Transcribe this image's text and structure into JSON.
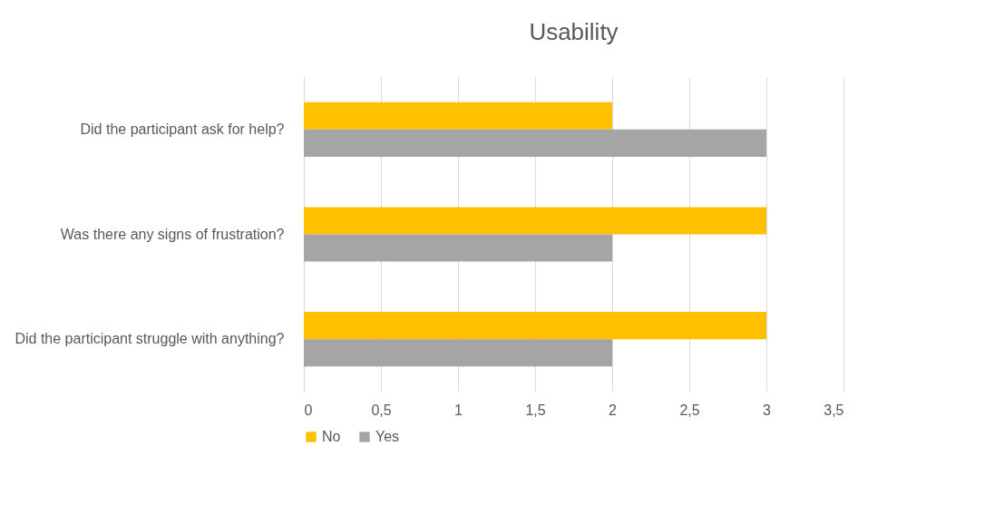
{
  "chart_data": {
    "type": "bar",
    "orientation": "horizontal",
    "title": "Usability",
    "categories": [
      "Did the participant ask for help?",
      "Was there any signs of frustration?",
      "Did the participant struggle with anything?"
    ],
    "series": [
      {
        "name": "No",
        "color": "#ffc000",
        "values": [
          2,
          3,
          3
        ]
      },
      {
        "name": "Yes",
        "color": "#a5a5a5",
        "values": [
          3,
          2,
          2
        ]
      }
    ],
    "xlim": [
      0,
      3.5
    ],
    "xticks": [
      0,
      {
        "value": 0.5,
        "label": "0,5"
      },
      1,
      {
        "value": 1.5,
        "label": "1,5"
      },
      2,
      {
        "value": 2.5,
        "label": "2,5"
      },
      3,
      {
        "value": 3.5,
        "label": "3,5"
      }
    ],
    "grid": "x",
    "legend": "bottom"
  }
}
